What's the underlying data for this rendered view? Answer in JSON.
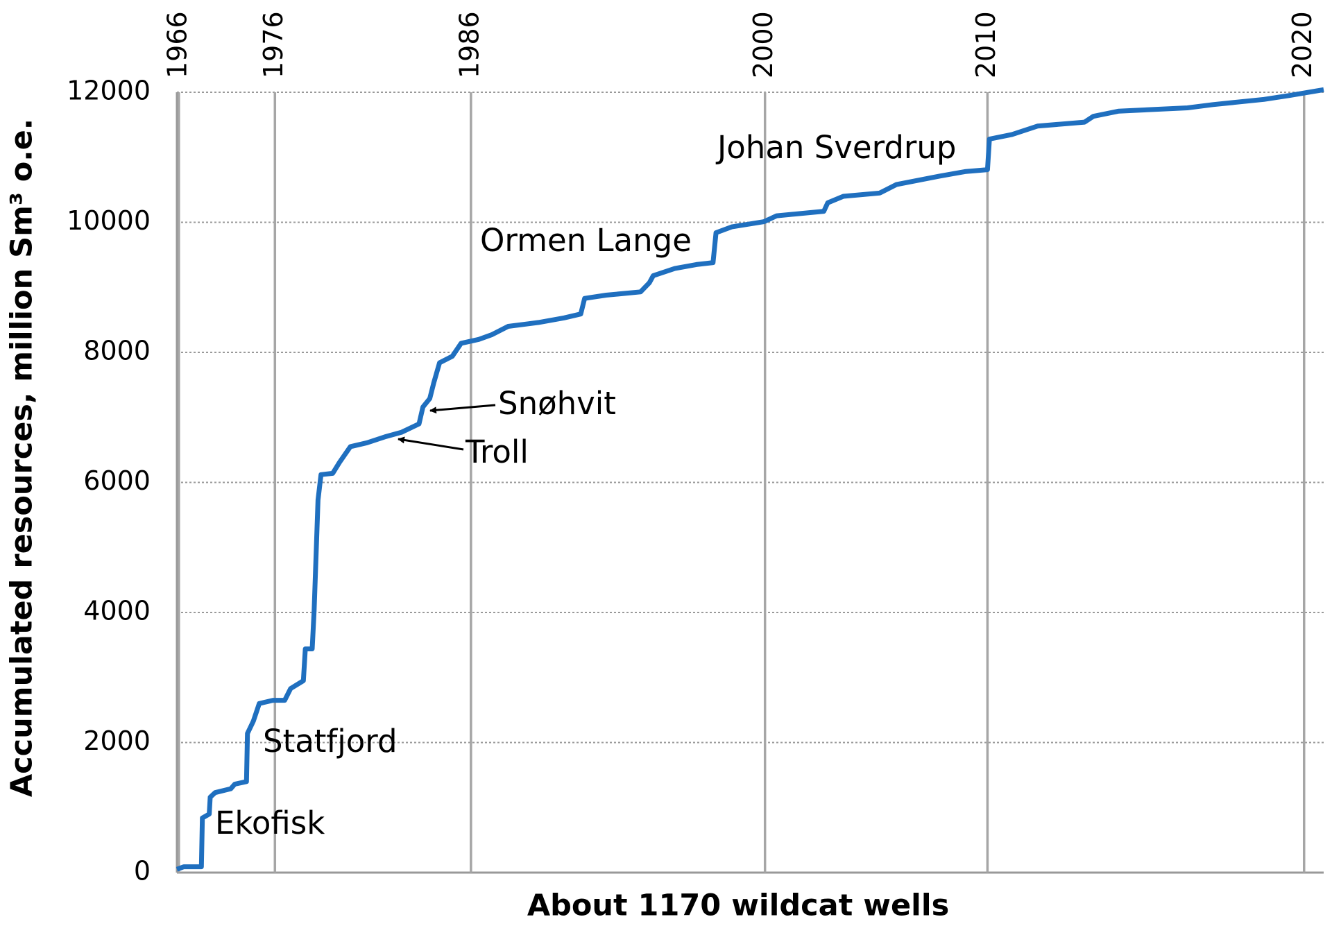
{
  "chart_data": {
    "type": "line",
    "x_label": "About 1170 wildcat wells",
    "y_label": "Accumulated resources, million Sm³ o.e.",
    "color": "#1f6fbf",
    "x": [
      0,
      7,
      25,
      26,
      33,
      34,
      39,
      55,
      59,
      71,
      72,
      78,
      84,
      98,
      110,
      116,
      129,
      131,
      138,
      140,
      144,
      147,
      159,
      166,
      177,
      194,
      212,
      229,
      247,
      251,
      258,
      262,
      268,
      281,
      290,
      308,
      321,
      338,
      369,
      395,
      412,
      416,
      438,
      473,
      482,
      486,
      508,
      530,
      547,
      550,
      566,
      599,
      612,
      660,
      664,
      680,
      717,
      734,
      778,
      804,
      827,
      829,
      852,
      878,
      926,
      935,
      961,
      1031,
      1057,
      1109,
      1135,
      1170
    ],
    "values": [
      50,
      90,
      90,
      840,
      900,
      1160,
      1230,
      1290,
      1360,
      1400,
      2140,
      2330,
      2600,
      2650,
      2650,
      2830,
      2950,
      3440,
      3440,
      4030,
      5730,
      6120,
      6140,
      6310,
      6550,
      6610,
      6700,
      6770,
      6900,
      7160,
      7290,
      7530,
      7840,
      7940,
      8140,
      8200,
      8270,
      8400,
      8460,
      8530,
      8590,
      8830,
      8880,
      8930,
      9070,
      9180,
      9290,
      9350,
      9380,
      9840,
      9930,
      10010,
      10100,
      10170,
      10300,
      10400,
      10450,
      10580,
      10710,
      10780,
      10810,
      11280,
      11350,
      11480,
      11540,
      11630,
      11710,
      11760,
      11810,
      11890,
      11950,
      12040
    ],
    "xlim": [
      0,
      1170
    ],
    "xticks": [
      {
        "value": 2,
        "label": "1966"
      },
      {
        "value": 100,
        "label": "1976"
      },
      {
        "value": 300,
        "label": "1986"
      },
      {
        "value": 600,
        "label": "2000"
      },
      {
        "value": 827,
        "label": "2010"
      },
      {
        "value": 1150,
        "label": "2020"
      }
    ],
    "ylim": [
      0,
      12000
    ],
    "yticks": [
      0,
      2000,
      4000,
      6000,
      8000,
      10000,
      12000
    ],
    "grid": true,
    "annotations": [
      "Ekofisk",
      "Statfjord",
      "Troll",
      "Snøhvit",
      "Ormen Lange",
      "Johan Sverdrup"
    ]
  }
}
